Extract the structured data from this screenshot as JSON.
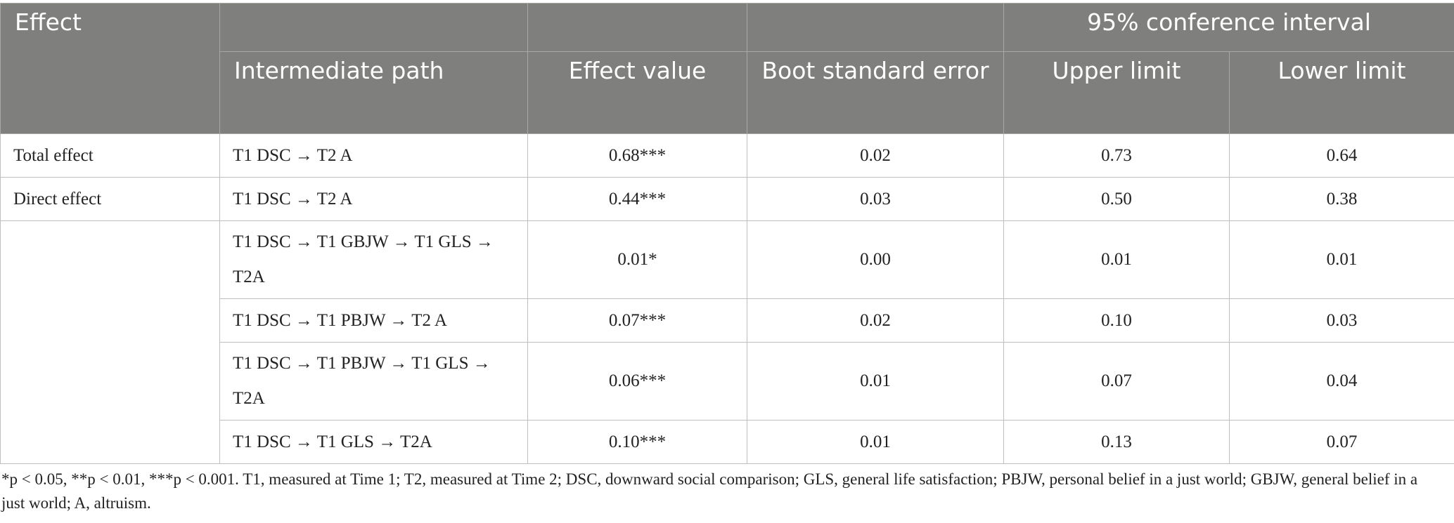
{
  "header": {
    "effect": "Effect",
    "ci": "95% conference interval",
    "path": "Intermediate path",
    "value": "Effect value",
    "boot_se": "Boot standard error",
    "upper": "Upper limit",
    "lower": "Lower limit"
  },
  "rows": [
    {
      "effect": "Total effect",
      "path": "T1 DSC → T2 A",
      "value": "0.68***",
      "se": "0.02",
      "upper": "0.73",
      "lower": "0.64"
    },
    {
      "effect": "Direct effect",
      "path": "T1 DSC → T2 A",
      "value": "0.44***",
      "se": "0.03",
      "upper": "0.50",
      "lower": "0.38"
    },
    {
      "effect": "",
      "path": "T1 DSC → T1 GBJW → T1 GLS → T2A",
      "value": "0.01*",
      "se": "0.00",
      "upper": "0.01",
      "lower": "0.01"
    },
    {
      "effect": "",
      "path": "T1 DSC → T1 PBJW → T2 A",
      "value": "0.07***",
      "se": "0.02",
      "upper": "0.10",
      "lower": "0.03"
    },
    {
      "effect": "",
      "path": "T1 DSC → T1 PBJW → T1 GLS → T2A",
      "value": "0.06***",
      "se": "0.01",
      "upper": "0.07",
      "lower": "0.04"
    },
    {
      "effect": "",
      "path": "T1 DSC → T1 GLS → T2A",
      "value": "0.10***",
      "se": "0.01",
      "upper": "0.13",
      "lower": "0.07"
    }
  ],
  "note": "*p < 0.05, **p < 0.01, ***p < 0.001. T1, measured at Time 1; T2, measured at Time 2; DSC, downward social comparison; GLS, general life satisfaction; PBJW, personal belief in a just world; GBJW, general belief in a just world; A, altruism."
}
